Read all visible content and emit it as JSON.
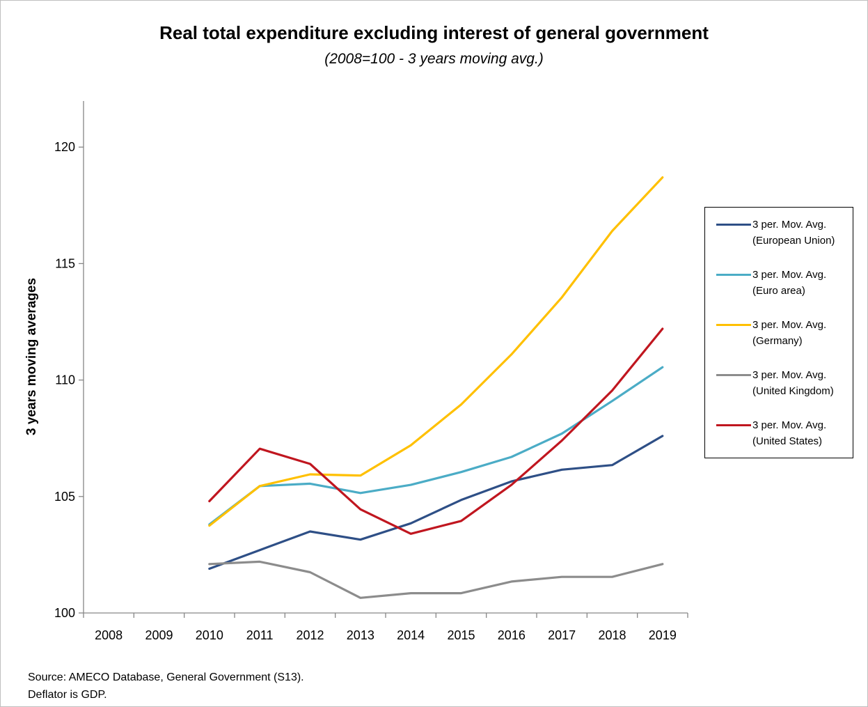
{
  "chart_data": {
    "type": "line",
    "title": "Real total expenditure excluding interest of general government",
    "subtitle": "(2008=100 - 3 years moving avg.)",
    "xlabel": "",
    "ylabel": "3 years moving averages",
    "ylim": [
      100,
      122
    ],
    "yticks": [
      100,
      105,
      110,
      115,
      120
    ],
    "categories": [
      "2008",
      "2009",
      "2010",
      "2011",
      "2012",
      "2013",
      "2014",
      "2015",
      "2016",
      "2017",
      "2018",
      "2019"
    ],
    "grid": false,
    "legend_position": "right",
    "series": [
      {
        "name": "3 per. Mov. Avg. (European Union)",
        "legend_line1": "3 per. Mov. Avg.",
        "legend_line2": "(European Union)",
        "color": "#2e4f86",
        "values": [
          null,
          null,
          101.9,
          102.7,
          103.5,
          103.15,
          103.85,
          104.85,
          105.65,
          106.15,
          106.35,
          107.6
        ]
      },
      {
        "name": "3 per. Mov. Avg. (Euro area)",
        "legend_line1": "3 per. Mov. Avg.",
        "legend_line2": "(Euro area)",
        "color": "#4bacc6",
        "values": [
          null,
          null,
          103.8,
          105.45,
          105.55,
          105.15,
          105.5,
          106.05,
          106.7,
          107.7,
          109.1,
          110.55
        ]
      },
      {
        "name": "3 per. Mov. Avg. (Germany)",
        "legend_line1": "3 per. Mov. Avg.",
        "legend_line2": "(Germany)",
        "color": "#ffc000",
        "values": [
          null,
          null,
          103.75,
          105.45,
          105.95,
          105.9,
          107.2,
          108.95,
          111.1,
          113.55,
          116.4,
          118.7
        ]
      },
      {
        "name": "3 per. Mov. Avg. (United Kingdom)",
        "legend_line1": "3 per. Mov. Avg.",
        "legend_line2": "(United Kingdom)",
        "color": "#8c8c8c",
        "values": [
          null,
          null,
          102.1,
          102.2,
          101.75,
          100.65,
          100.85,
          100.85,
          101.35,
          101.55,
          101.55,
          102.1
        ]
      },
      {
        "name": "3 per. Mov. Avg. (United States)",
        "legend_line1": "3 per. Mov. Avg.",
        "legend_line2": "(United States)",
        "color": "#c0161f",
        "values": [
          null,
          null,
          104.8,
          107.05,
          106.4,
          104.45,
          103.4,
          103.95,
          105.5,
          107.4,
          109.55,
          112.2
        ]
      }
    ]
  },
  "footer": {
    "source_line1": "Source: AMECO Database, General Government (S13).",
    "source_line2": "Deflator is GDP."
  }
}
